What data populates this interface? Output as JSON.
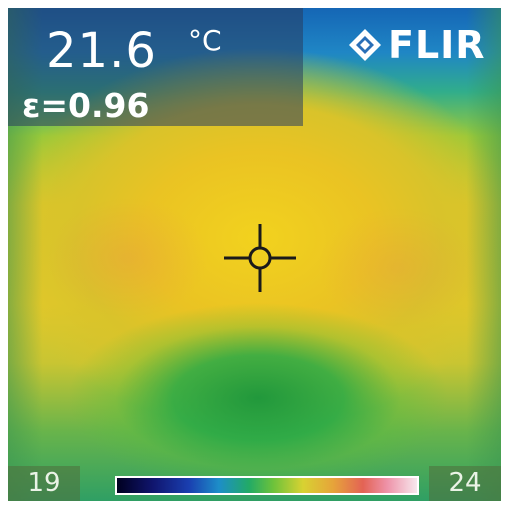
{
  "readout": {
    "temperature_value": "21.6",
    "temperature_unit": "°C",
    "emissivity": "ε=0.96"
  },
  "brand": {
    "name": "FLIR",
    "logo_icon": "flir-diamond-icon"
  },
  "crosshair": {
    "icon": "crosshair-spot-icon"
  },
  "scale": {
    "min": "19",
    "max": "24",
    "palette": "iron-rainbow"
  },
  "colors": {
    "hot": "#eac323",
    "warm": "#98c93a",
    "cool": "#2f9f64",
    "cold": "#1566b5"
  }
}
